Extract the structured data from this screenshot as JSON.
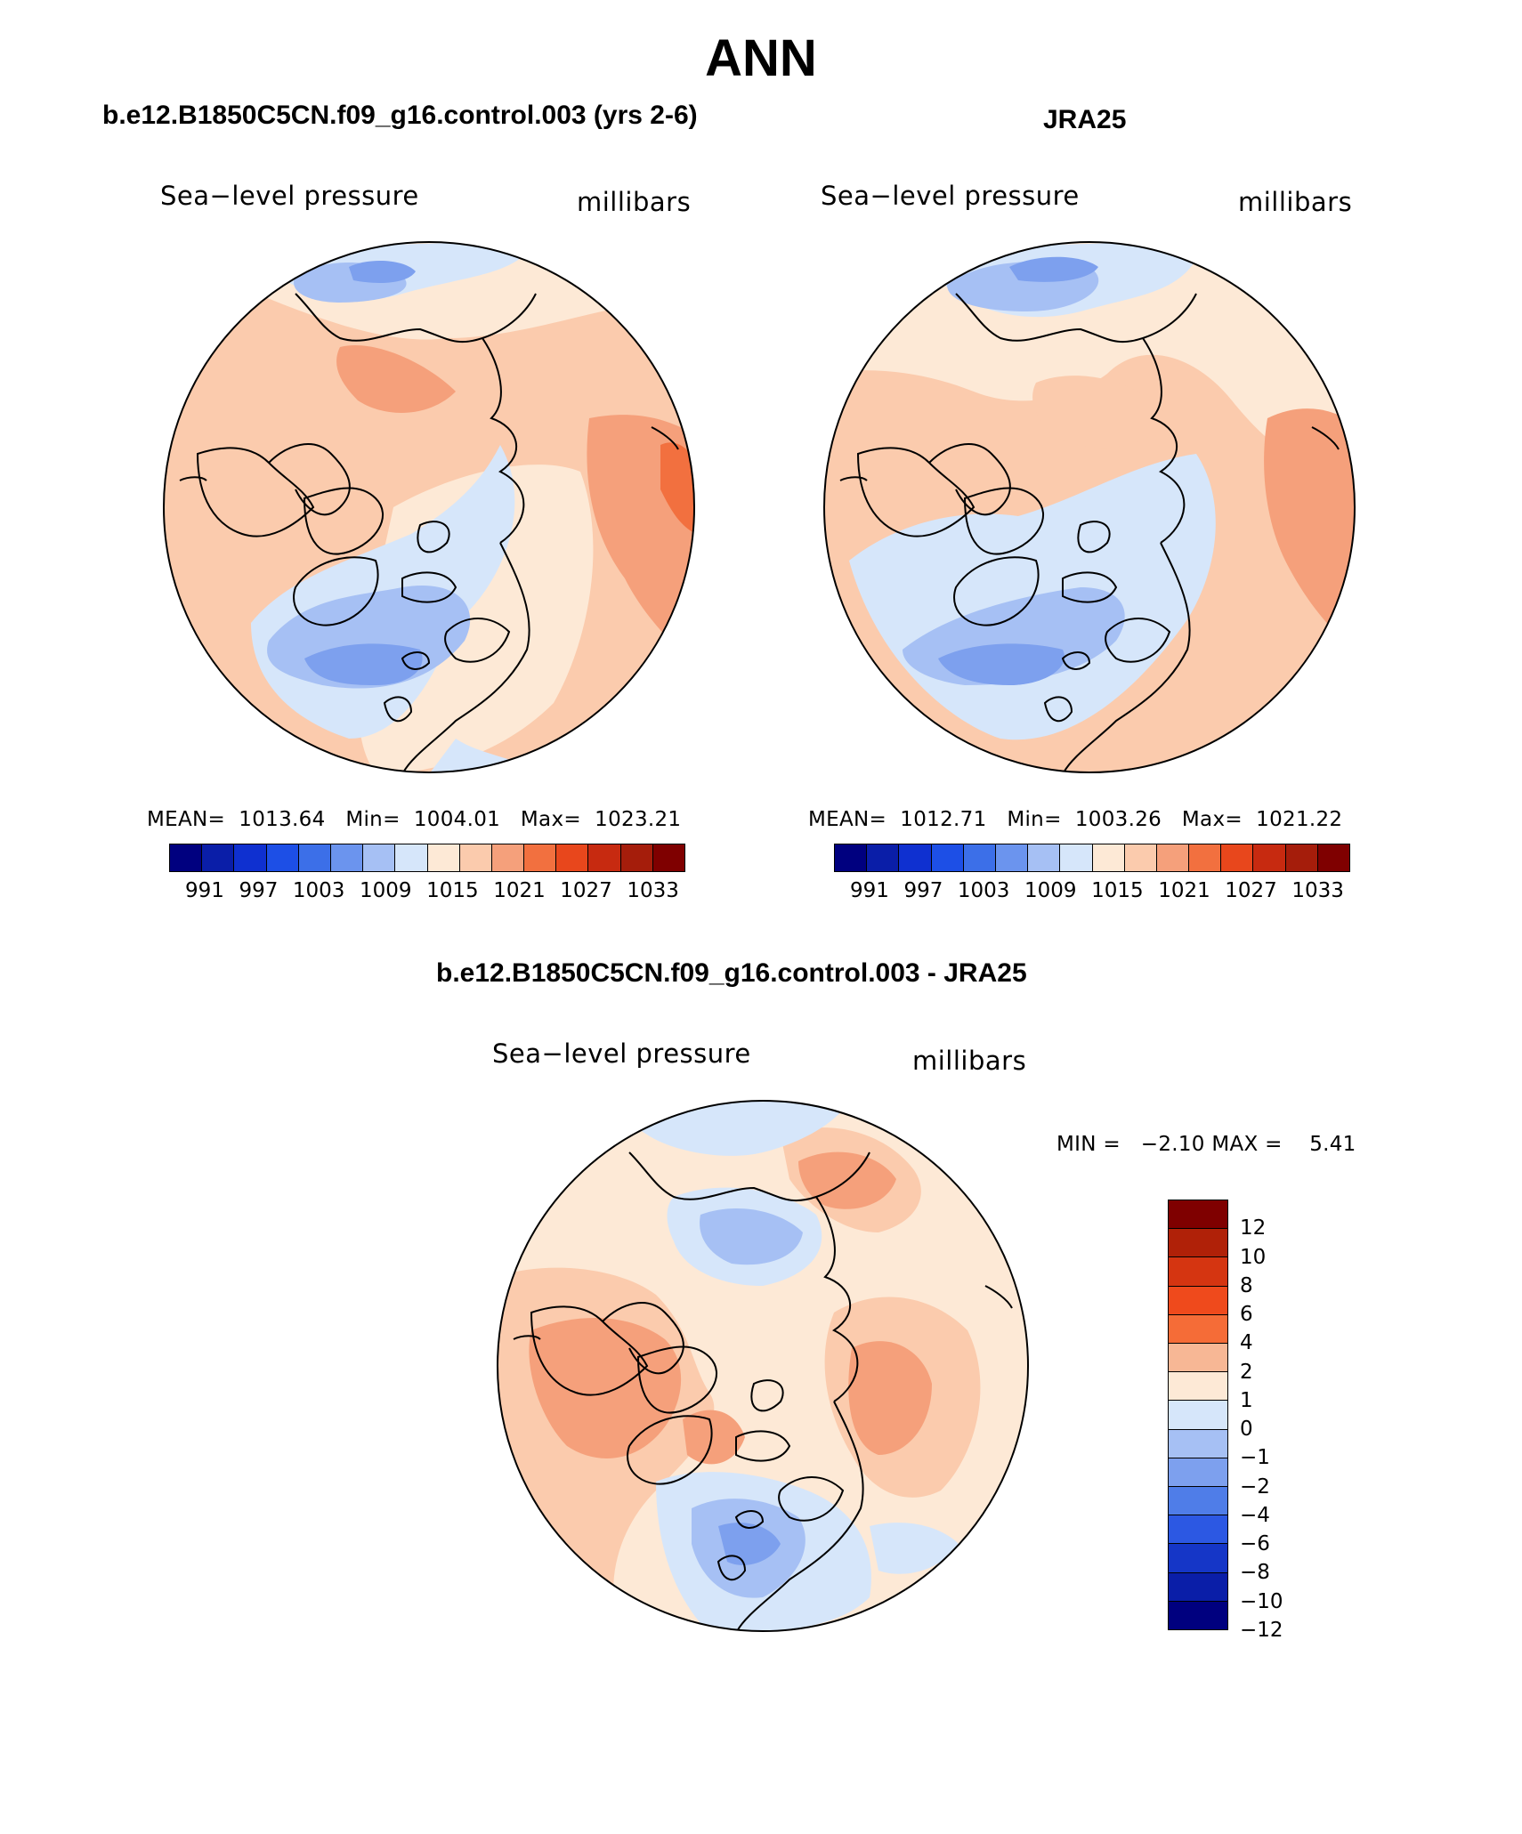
{
  "figure": {
    "season": "ANN"
  },
  "panels": [
    {
      "title": "b.e12.B1850C5CN.f09_g16.control.003 (yrs 2-6)",
      "variable_label": "Sea−level pressure",
      "units_label": "millibars",
      "stats": "MEAN=  1013.64   Min=  1004.01   Max=  1023.21",
      "mean": 1013.64,
      "min": 1004.01,
      "max": 1023.21
    },
    {
      "title": "JRA25",
      "variable_label": "Sea−level pressure",
      "units_label": "millibars",
      "stats": "MEAN=  1012.71   Min=  1003.26   Max=  1021.22",
      "mean": 1012.71,
      "min": 1003.26,
      "max": 1021.22
    },
    {
      "title": "b.e12.B1850C5CN.f09_g16.control.003 - JRA25",
      "variable_label": "Sea−level pressure",
      "units_label": "millibars",
      "stats": "MIN =   −2.10 MAX =    5.41",
      "min": -2.1,
      "max": 5.41
    }
  ],
  "colorbar_abs": {
    "tick_labels": [
      "991",
      "997",
      "1003",
      "1009",
      "1015",
      "1021",
      "1027",
      "1033"
    ],
    "colors": [
      "#00007f",
      "#0a1ea8",
      "#0f30d0",
      "#1d4fe6",
      "#3c6fe8",
      "#6b94ee",
      "#a6c0f4",
      "#d6e6fa",
      "#fde9d6",
      "#fbcbad",
      "#f5a07b",
      "#f2703f",
      "#e8471c",
      "#c72a10",
      "#a51d0b",
      "#7f0000"
    ]
  },
  "colorbar_diff": {
    "tick_labels": [
      "12",
      "10",
      "8",
      "6",
      "4",
      "2",
      "1",
      "0",
      "−1",
      "−2",
      "−4",
      "−6",
      "−8",
      "−10",
      "−12"
    ],
    "colors": [
      "#7f0000",
      "#b02108",
      "#d53511",
      "#ef4a1c",
      "#f56c37",
      "#f7b795",
      "#fde9d6",
      "#d6e6fa",
      "#a6c0f4",
      "#7da0ee",
      "#4f7de8",
      "#2c58e3",
      "#1536c7",
      "#0a1ea8",
      "#00007f"
    ]
  },
  "map_colors": {
    "warm1": "#fde9d6",
    "warm2": "#fbcbad",
    "warm3": "#f5a07b",
    "warm4": "#f2703f",
    "cool1": "#d6e6fa",
    "cool2": "#a6c0f4",
    "cool3": "#7da0ee"
  }
}
